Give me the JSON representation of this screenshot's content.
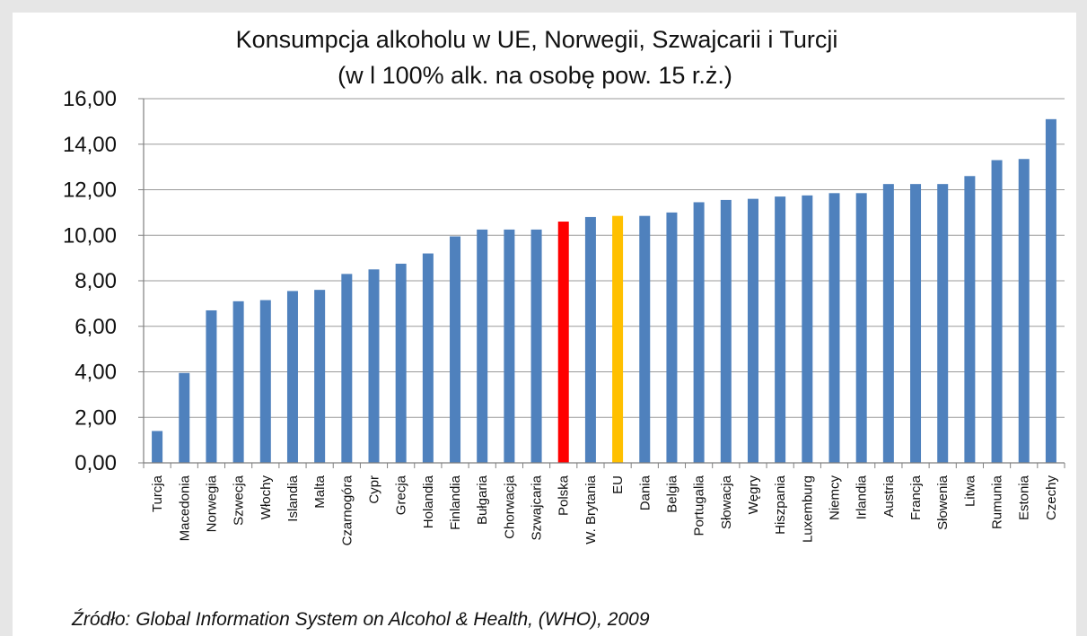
{
  "chart_data": {
    "type": "bar",
    "title": "Konsumpcja alkoholu w UE, Norwegii, Szwajcarii i Turcji",
    "subtitle": "(w l 100% alk. na osobę pow. 15 r.ż.)",
    "xlabel": "",
    "ylabel": "",
    "ylim": [
      0,
      16
    ],
    "yticks": [
      "0,00",
      "2,00",
      "4,00",
      "6,00",
      "8,00",
      "10,00",
      "12,00",
      "14,00",
      "16,00"
    ],
    "grid": true,
    "legend": "none",
    "categories": [
      "Turcja",
      "Macedonia",
      "Norwegia",
      "Szwecja",
      "Włochy",
      "Islandia",
      "Malta",
      "Czarnogóra",
      "Cypr",
      "Grecja",
      "Holandia",
      "Finlandia",
      "Bułgaria",
      "Chorwacja",
      "Szwajcaria",
      "Polska",
      "W. Brytania",
      "EU",
      "Dania",
      "Belgia",
      "Portugalia",
      "Słowacja",
      "Węgry",
      "Hiszpania",
      "Luxemburg",
      "Niemcy",
      "Irlandia",
      "Austria",
      "Francja",
      "Słowenia",
      "Litwa",
      "Rumunia",
      "Estonia",
      "Czechy"
    ],
    "values": [
      1.4,
      3.95,
      6.7,
      7.1,
      7.15,
      7.55,
      7.6,
      8.3,
      8.5,
      8.75,
      9.2,
      9.95,
      10.25,
      10.25,
      10.25,
      10.6,
      10.8,
      10.85,
      10.85,
      11.0,
      11.45,
      11.55,
      11.6,
      11.7,
      11.75,
      11.85,
      11.85,
      12.25,
      12.25,
      12.25,
      12.6,
      13.3,
      13.35,
      15.1
    ],
    "colors": {
      "default": "#4f81bd",
      "highlight": {
        "Polska": "#ff0000",
        "EU": "#ffc000"
      }
    },
    "source": "Źródło: Global Information System on Alcohol & Health, (WHO), 2009"
  }
}
